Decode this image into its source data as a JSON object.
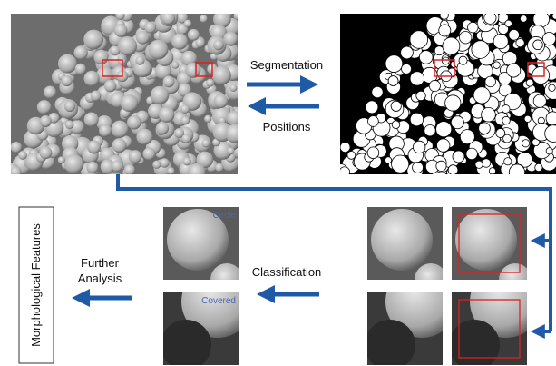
{
  "arrows": {
    "forward": "Segmentation",
    "backward": "Positions",
    "classify": "Classification",
    "further": "Further Analysis"
  },
  "side_label": "Morphological Features",
  "classes": [
    "Circle",
    "Covered"
  ]
}
